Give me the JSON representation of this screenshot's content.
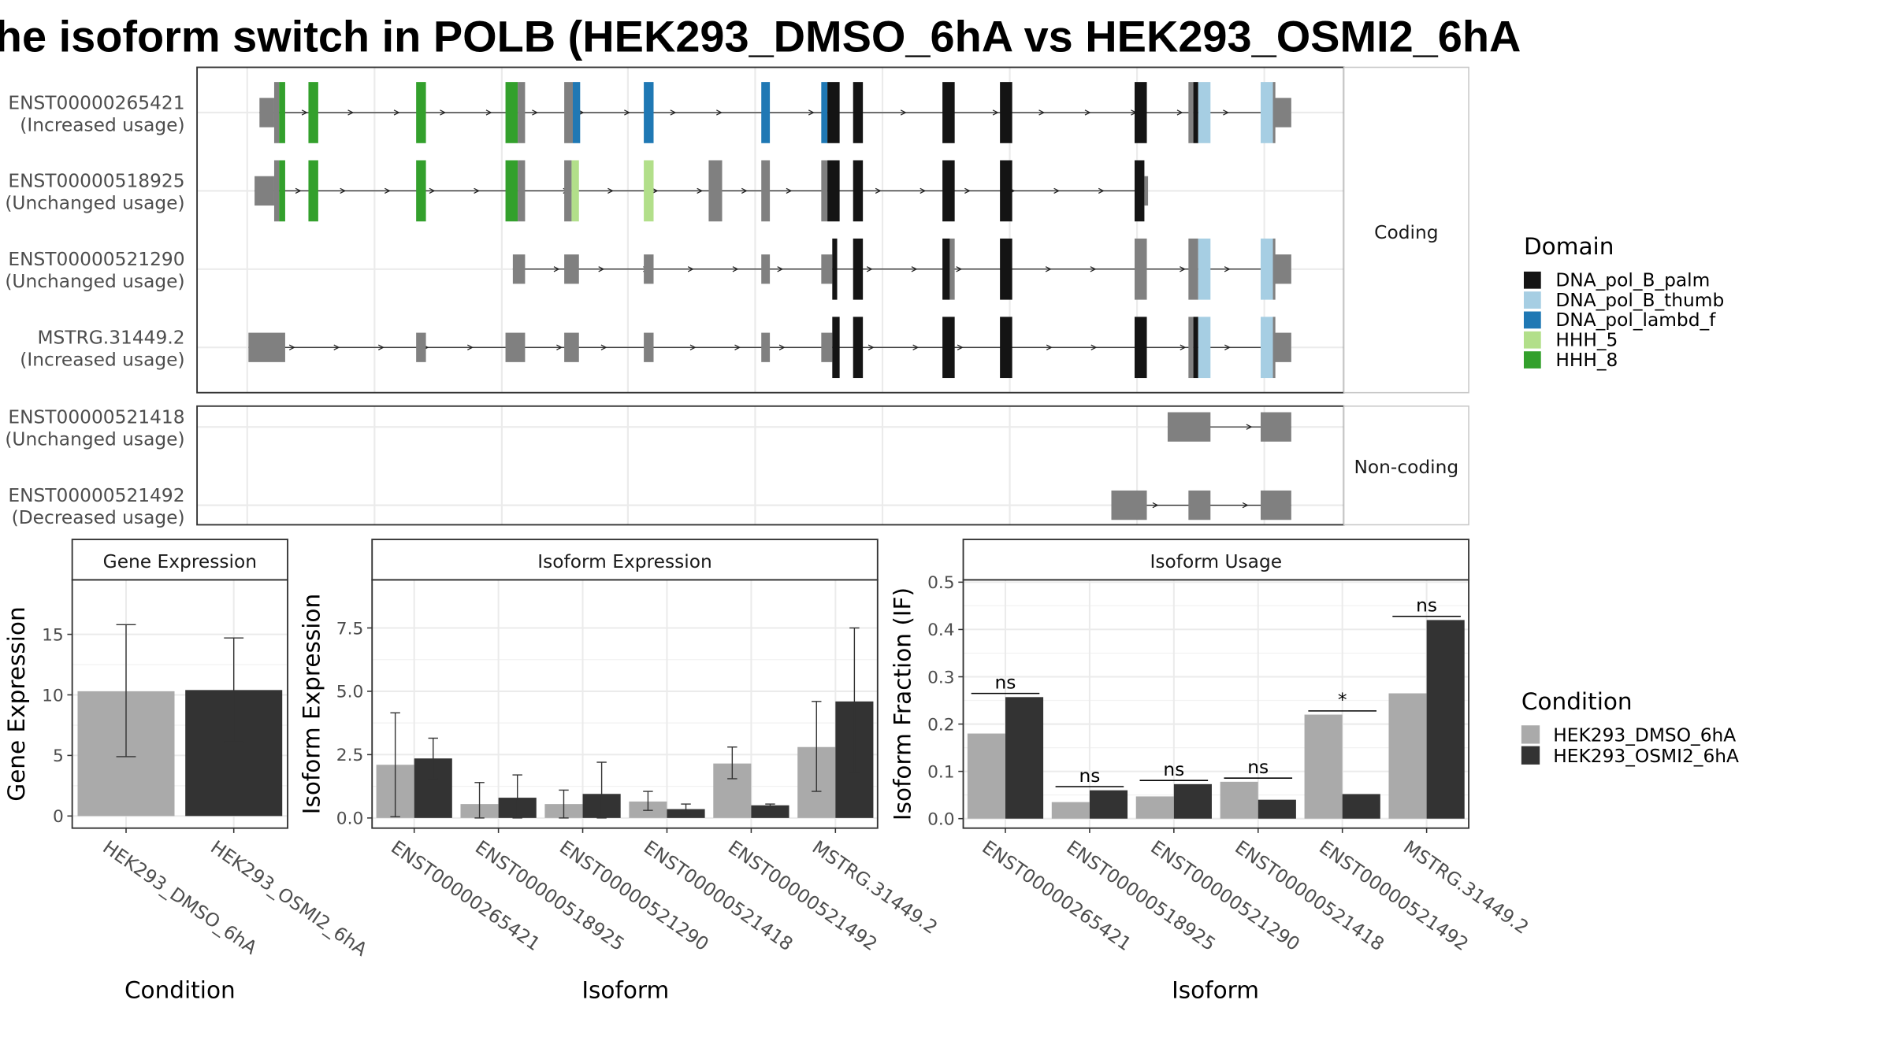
{
  "title": "he isoform switch in POLB (HEK293_DMSO_6hA vs HEK293_OSMI2_6hA",
  "structure": {
    "strips": {
      "coding": "Coding",
      "noncoding": "Non-coding"
    },
    "transcripts": [
      {
        "id": "ENST00000265421",
        "status": "(Increased usage)",
        "group": "coding"
      },
      {
        "id": "ENST00000518925",
        "status": "(Unchanged usage)",
        "group": "coding"
      },
      {
        "id": "ENST00000521290",
        "status": "(Unchanged usage)",
        "group": "coding"
      },
      {
        "id": "MSTRG.31449.2",
        "status": "(Increased usage)",
        "group": "coding"
      },
      {
        "id": "ENST00000521418",
        "status": "(Unchanged usage)",
        "group": "noncoding"
      },
      {
        "id": "ENST00000521492",
        "status": "(Decreased usage)",
        "group": "noncoding"
      }
    ]
  },
  "domain_legend": {
    "title": "Domain",
    "items": [
      {
        "label": "DNA_pol_B_palm",
        "color": "#141414"
      },
      {
        "label": "DNA_pol_B_thumb",
        "color": "#a6cee3"
      },
      {
        "label": "DNA_pol_lambd_f",
        "color": "#1f78b4"
      },
      {
        "label": "HHH_5",
        "color": "#b2df8a"
      },
      {
        "label": "HHH_8",
        "color": "#33a02c"
      }
    ]
  },
  "condition_legend": {
    "title": "Condition",
    "items": [
      {
        "label": "HEK293_DMSO_6hA",
        "color": "#aaaaaa"
      },
      {
        "label": "HEK293_OSMI2_6hA",
        "color": "#333333"
      }
    ]
  },
  "chart_data": [
    {
      "type": "bar",
      "title": "Gene Expression",
      "xlabel": "Condition",
      "ylabel": "Gene Expression",
      "ylim": [
        -1,
        19.5
      ],
      "yticks": [
        0,
        5,
        10,
        15
      ],
      "categories": [
        "HEK293_DMSO_6hA",
        "HEK293_OSMI2_6hA"
      ],
      "values": [
        10.3,
        10.4
      ],
      "err_low": [
        4.9,
        6.1
      ],
      "err_high": [
        15.8,
        14.7
      ]
    },
    {
      "type": "bar",
      "title": "Isoform Expression",
      "xlabel": "Isoform",
      "ylabel": "Isoform Expression",
      "ylim": [
        -0.4,
        9.4
      ],
      "yticks": [
        0.0,
        2.5,
        5.0,
        7.5
      ],
      "ytick_labels": [
        "0.0",
        "2.5",
        "5.0",
        "7.5"
      ],
      "categories": [
        "ENST00000265421",
        "ENST00000518925",
        "ENST00000521290",
        "ENST00000521418",
        "ENST00000521492",
        "MSTRG.31449.2"
      ],
      "series": [
        {
          "name": "HEK293_DMSO_6hA",
          "values": [
            2.1,
            0.55,
            0.55,
            0.65,
            2.15,
            2.8
          ],
          "err_low": [
            0.05,
            0.0,
            0.0,
            0.3,
            1.55,
            1.05
          ],
          "err_high": [
            4.15,
            1.4,
            1.1,
            1.05,
            2.8,
            4.6
          ]
        },
        {
          "name": "HEK293_OSMI2_6hA",
          "values": [
            2.35,
            0.8,
            0.95,
            0.35,
            0.5,
            4.6
          ],
          "err_low": [
            1.55,
            0.0,
            0.0,
            0.15,
            0.45,
            1.8
          ],
          "err_high": [
            3.15,
            1.7,
            2.2,
            0.55,
            0.55,
            7.5
          ]
        }
      ]
    },
    {
      "type": "bar",
      "title": "Isoform Usage",
      "xlabel": "Isoform",
      "ylabel": "Isoform Fraction (IF)",
      "ylim": [
        -0.02,
        0.505
      ],
      "yticks": [
        0.0,
        0.1,
        0.2,
        0.3,
        0.4,
        0.5
      ],
      "ytick_labels": [
        "0.0",
        "0.1",
        "0.2",
        "0.3",
        "0.4",
        "0.5"
      ],
      "categories": [
        "ENST00000265421",
        "ENST00000518925",
        "ENST00000521290",
        "ENST00000521418",
        "ENST00000521492",
        "MSTRG.31449.2"
      ],
      "series": [
        {
          "name": "HEK293_DMSO_6hA",
          "values": [
            0.18,
            0.035,
            0.047,
            0.078,
            0.22,
            0.265
          ]
        },
        {
          "name": "HEK293_OSMI2_6hA",
          "values": [
            0.257,
            0.06,
            0.073,
            0.04,
            0.052,
            0.42
          ]
        }
      ],
      "significance": [
        "ns",
        "ns",
        "ns",
        "ns",
        "*",
        "ns"
      ]
    }
  ]
}
